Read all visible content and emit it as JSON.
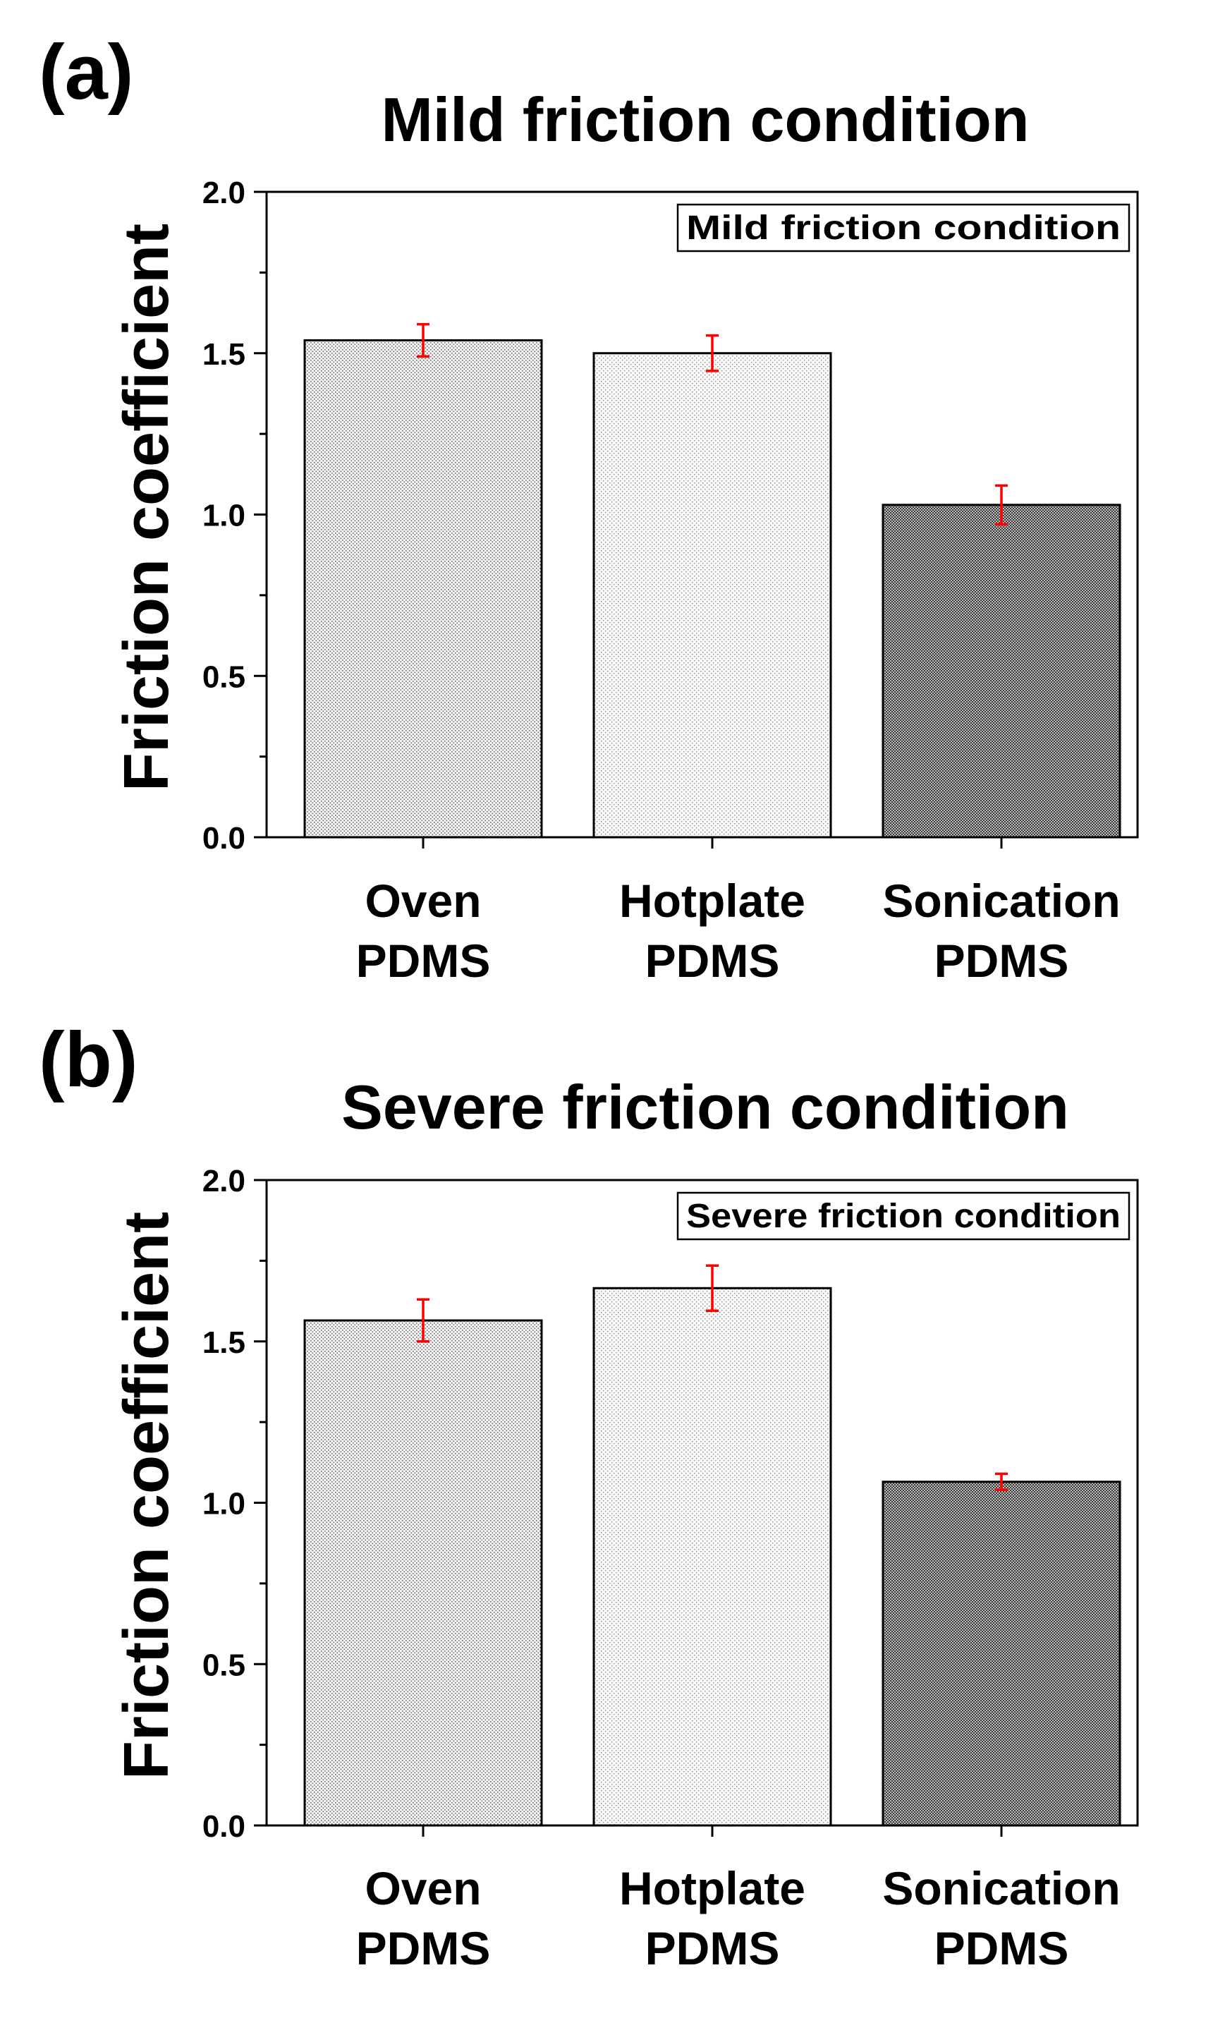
{
  "chart_data": [
    {
      "type": "bar",
      "panel_label": "(a)",
      "title": "Mild friction condition",
      "legend_text": "Mild friction condition",
      "legend_position": "top-right",
      "ylabel": "Friction coefficient",
      "xlabel": "",
      "ylim": [
        0.0,
        2.0
      ],
      "yticks": [
        "0.0",
        "0.5",
        "1.0",
        "1.5",
        "2.0"
      ],
      "categories": [
        [
          "Oven",
          "PDMS"
        ],
        [
          "Hotplate",
          "PDMS"
        ],
        [
          "Sonication",
          "PDMS"
        ]
      ],
      "values": [
        1.54,
        1.5,
        1.03
      ],
      "errors": [
        0.05,
        0.055,
        0.06
      ],
      "fill_patterns": [
        "medium",
        "light",
        "dark"
      ],
      "error_color": "#ff0000",
      "grid": false
    },
    {
      "type": "bar",
      "panel_label": "(b)",
      "title": "Severe friction condition",
      "legend_text": "Severe friction condition",
      "legend_position": "top-right",
      "ylabel": "Friction coefficient",
      "xlabel": "",
      "ylim": [
        0.0,
        2.0
      ],
      "yticks": [
        "0.0",
        "0.5",
        "1.0",
        "1.5",
        "2.0"
      ],
      "categories": [
        [
          "Oven",
          "PDMS"
        ],
        [
          "Hotplate",
          "PDMS"
        ],
        [
          "Sonication",
          "PDMS"
        ]
      ],
      "values": [
        1.565,
        1.665,
        1.065
      ],
      "errors": [
        0.065,
        0.07,
        0.025
      ],
      "fill_patterns": [
        "medium",
        "light",
        "dark"
      ],
      "error_color": "#ff0000",
      "grid": false
    }
  ]
}
